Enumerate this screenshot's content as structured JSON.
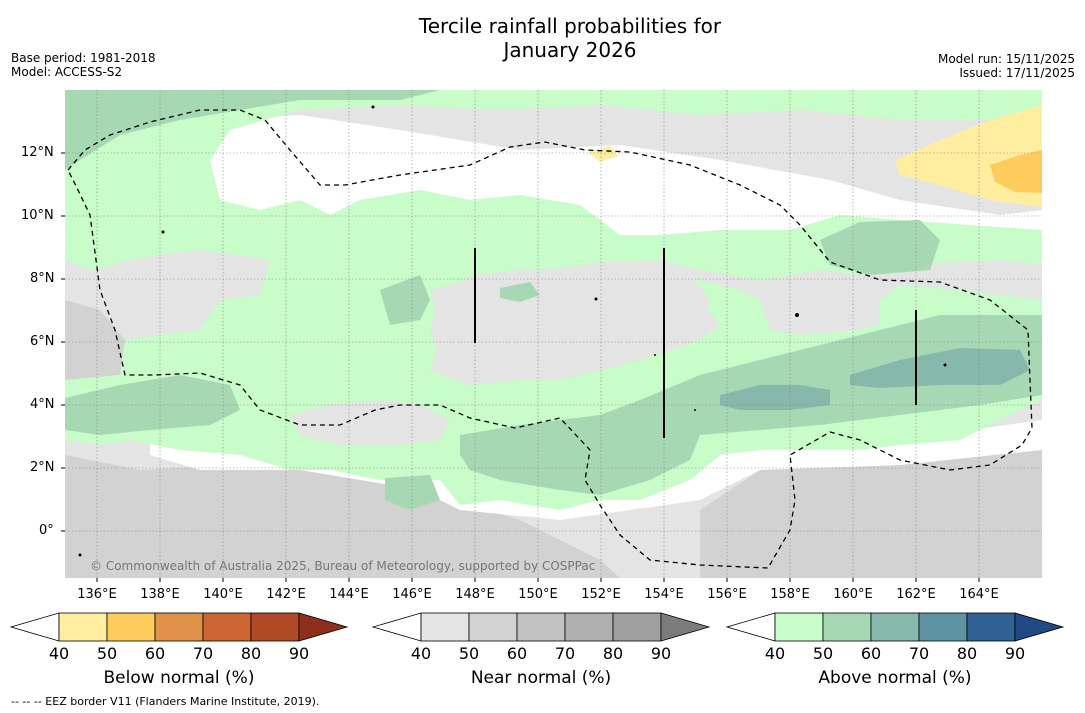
{
  "header": {
    "title_line1": "Tercile rainfall probabilities for",
    "title_line2": "January 2026",
    "base_period": "Base period: 1981-2018",
    "model": "Model: ACCESS-S2",
    "model_run": "Model run: 15/11/2025",
    "issued": "Issued: 17/11/2025"
  },
  "map": {
    "lon_labels": [
      "136°E",
      "138°E",
      "140°E",
      "142°E",
      "144°E",
      "146°E",
      "148°E",
      "150°E",
      "152°E",
      "154°E",
      "156°E",
      "158°E",
      "160°E",
      "162°E",
      "164°E"
    ],
    "lat_labels": [
      "12°N",
      "10°N",
      "8°N",
      "6°N",
      "4°N",
      "2°N",
      "0°"
    ],
    "copyright": "© Commonwealth of Australia 2025, Bureau of Meteorology, supported by COSPPac",
    "lon_range": [
      135,
      166
    ],
    "lat_range": [
      -1.5,
      14
    ]
  },
  "colorbars": {
    "ticks": [
      "40",
      "50",
      "60",
      "70",
      "80",
      "90"
    ],
    "below": {
      "label": "Below normal (%)",
      "colors": [
        "#ffffff",
        "#ffeda0",
        "#fecc5c",
        "#e0914a",
        "#cc6633",
        "#b04a26",
        "#8e2f1c"
      ]
    },
    "near": {
      "label": "Near normal (%)",
      "colors": [
        "#ffffff",
        "#e4e4e4",
        "#d2d2d2",
        "#c2c2c2",
        "#b0b0b0",
        "#9f9f9f",
        "#7c7c7c"
      ]
    },
    "above": {
      "label": "Above normal (%)",
      "colors": [
        "#ffffff",
        "#c8fcc8",
        "#a6d8b4",
        "#86b8ac",
        "#5e93a4",
        "#2f6194",
        "#1f4a85"
      ]
    }
  },
  "footnote": "--  --  -- EEZ border V11 (Flanders Marine Institute, 2019)."
}
